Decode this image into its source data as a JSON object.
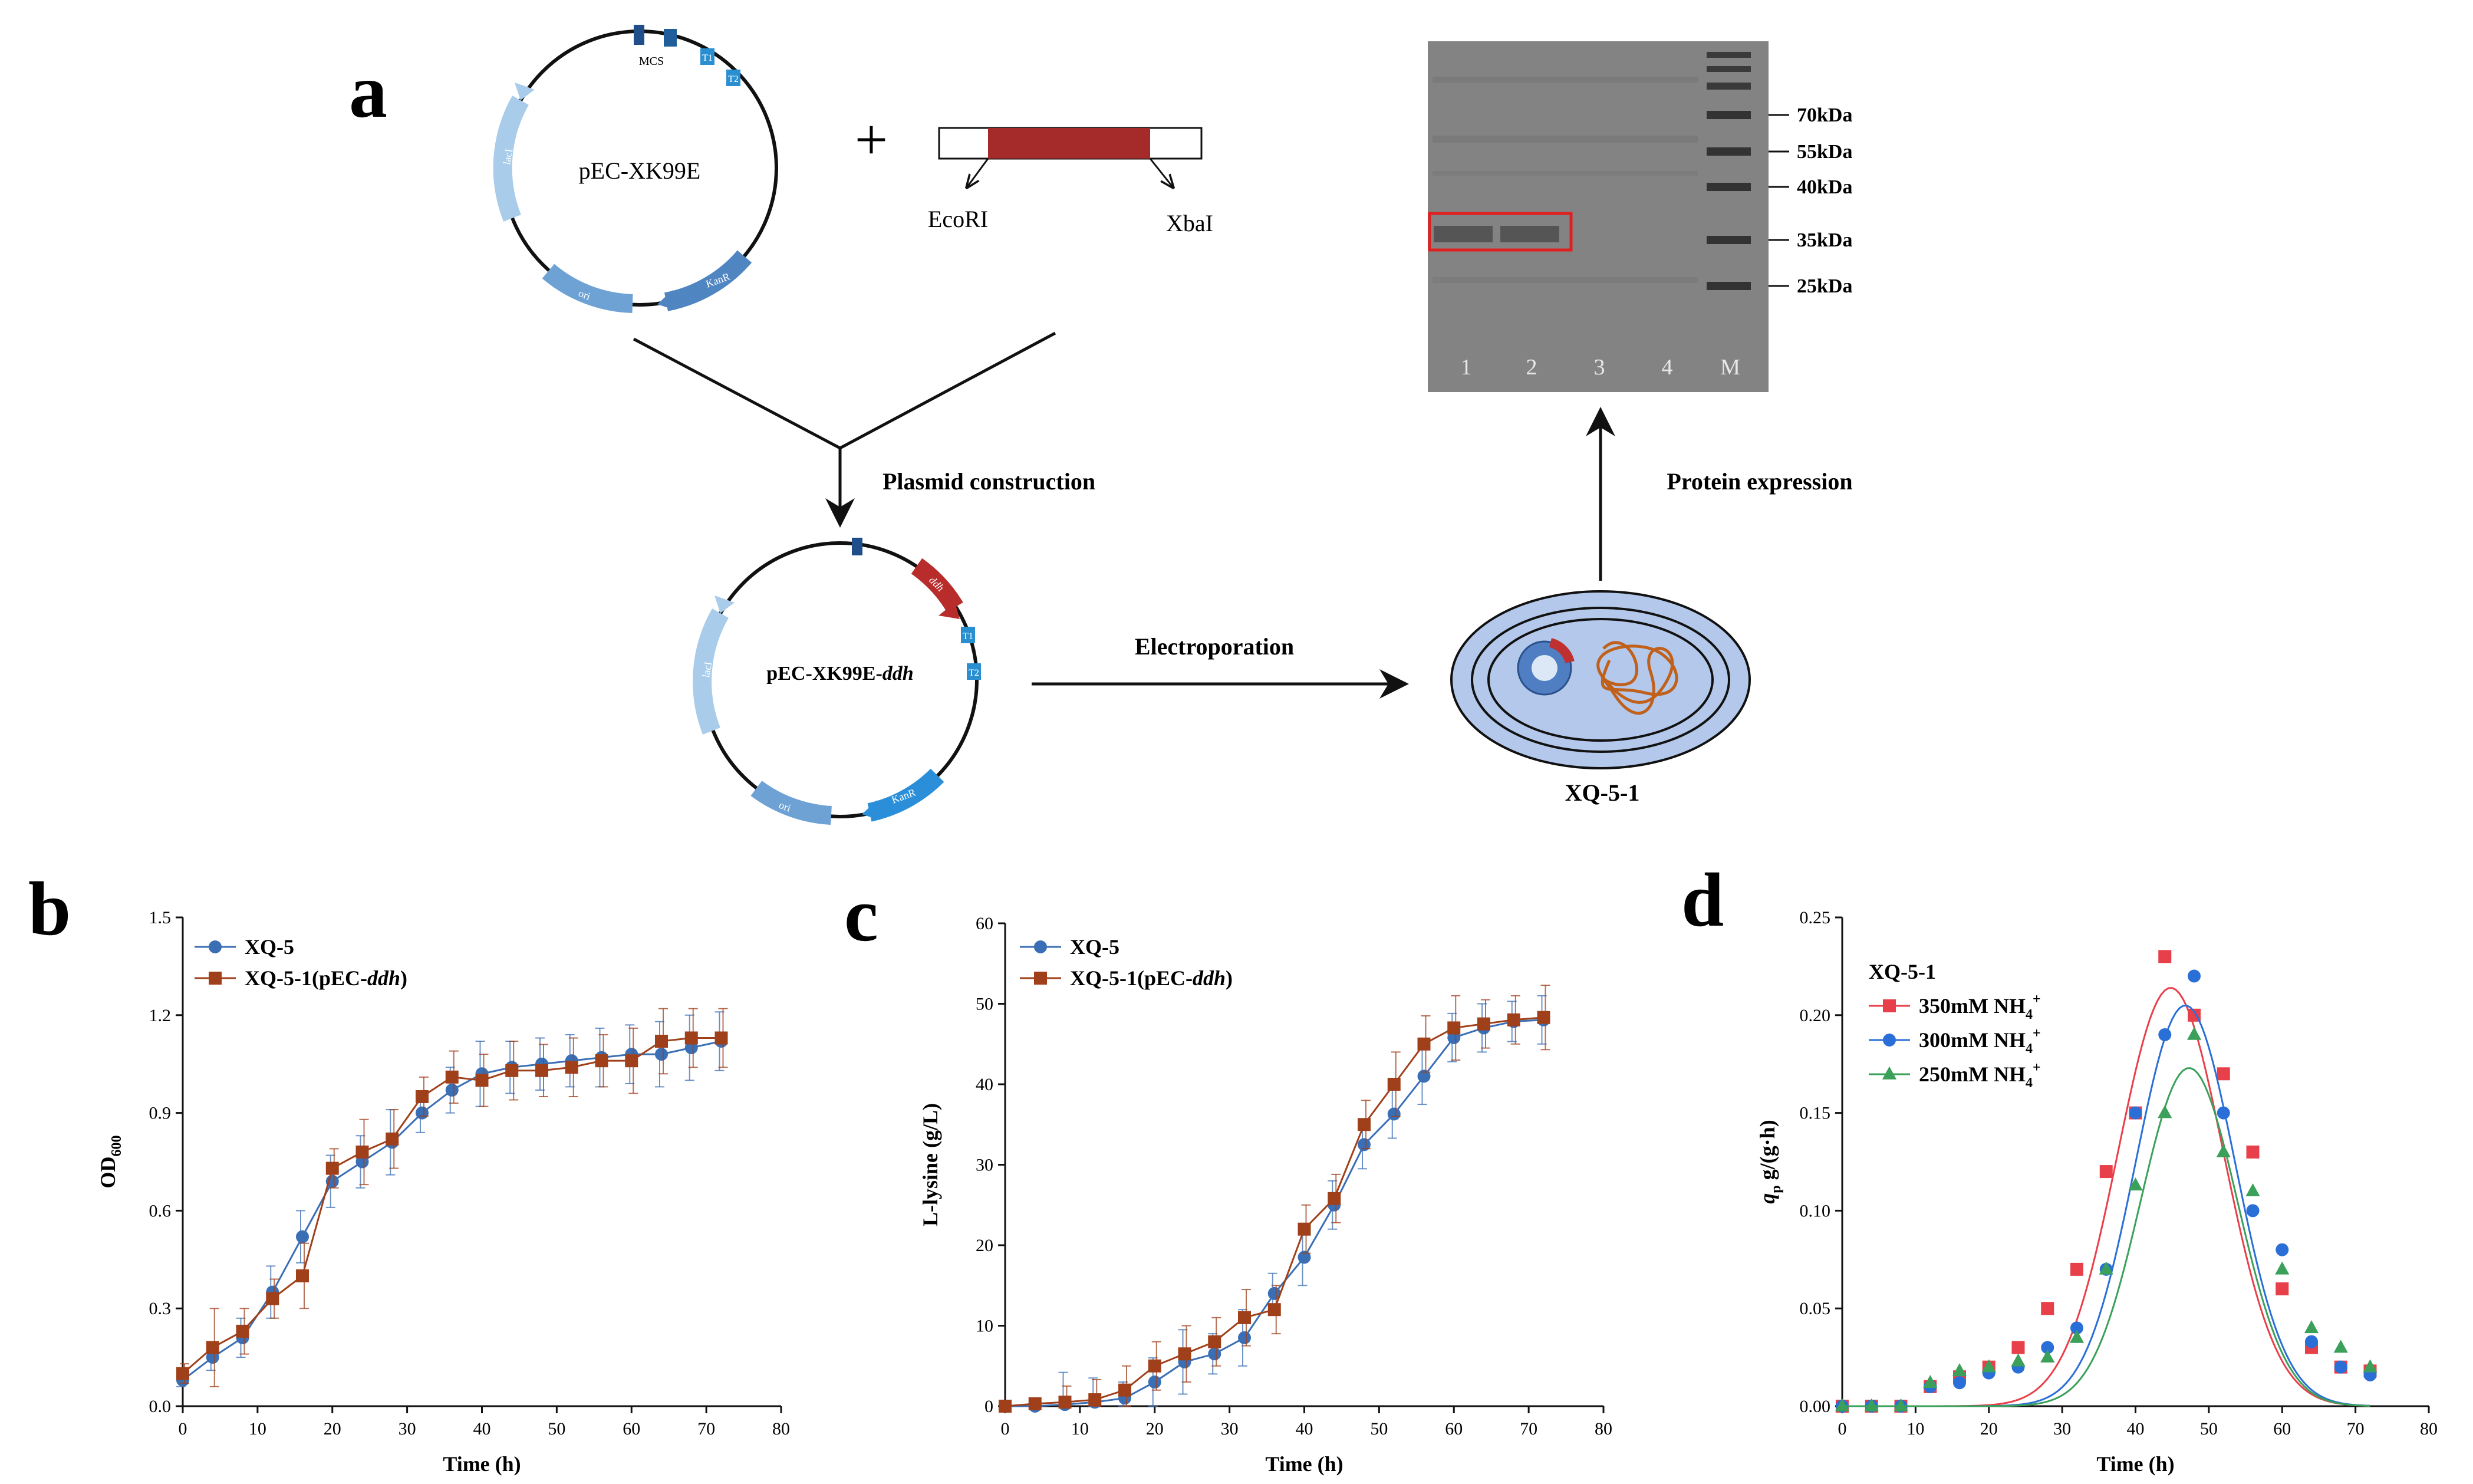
{
  "panels": {
    "a": {
      "label": "a",
      "plasmid1": "pEC-XK99E",
      "plasmid1_features": [
        "MCS",
        "T1",
        "T2",
        "KanR",
        "ori",
        "lacI"
      ],
      "plus": "+",
      "site_left": "EcoRI",
      "site_right": "XbaI",
      "step1": "Plasmid construction",
      "plasmid2_prefix": "pEC-XK99E-",
      "plasmid2_gene": "ddh",
      "plasmid2_features": [
        "ddh",
        "T1",
        "T2",
        "KanR",
        "ori",
        "lacI"
      ],
      "step2": "Electroporation",
      "strain": "XQ-5-1",
      "step3": "Protein expression",
      "gel_markers": [
        "70kDa",
        "55kDa",
        "40kDa",
        "35kDa",
        "25kDa"
      ],
      "gel_lanes": [
        "1",
        "2",
        "3",
        "4",
        "M"
      ]
    },
    "b": {
      "label": "b"
    },
    "c": {
      "label": "c"
    },
    "d": {
      "label": "d"
    }
  },
  "colors": {
    "blue": "#3a6eb5",
    "brown": "#a0401a",
    "red": "#e8404a",
    "blue_d": "#2a6fd8",
    "green": "#3aa05a",
    "insert": "#a52a2a"
  },
  "chart_data": [
    {
      "panel": "b",
      "type": "line",
      "xlabel": "Time (h)",
      "ylabel": "OD600",
      "ylabel_main": "OD",
      "ylabel_sub": "600",
      "xlim": [
        0,
        80
      ],
      "ylim": [
        0,
        1.5
      ],
      "xticks": [
        0,
        10,
        20,
        30,
        40,
        50,
        60,
        70,
        80
      ],
      "yticks": [
        0.0,
        0.3,
        0.6,
        0.9,
        1.2,
        1.5
      ],
      "x": [
        0,
        4,
        8,
        12,
        16,
        20,
        24,
        28,
        32,
        36,
        40,
        44,
        48,
        52,
        56,
        60,
        64,
        68,
        72
      ],
      "series": [
        {
          "name": "XQ-5",
          "marker": "circle",
          "values": [
            0.08,
            0.15,
            0.21,
            0.35,
            0.52,
            0.69,
            0.75,
            0.81,
            0.9,
            0.97,
            1.02,
            1.04,
            1.05,
            1.06,
            1.07,
            1.08,
            1.08,
            1.1,
            1.12
          ],
          "err": [
            0.02,
            0.04,
            0.06,
            0.08,
            0.08,
            0.08,
            0.08,
            0.1,
            0.06,
            0.07,
            0.1,
            0.08,
            0.08,
            0.08,
            0.09,
            0.09,
            0.1,
            0.1,
            0.09
          ]
        },
        {
          "name": "XQ-5-1(pEC-ddh)",
          "name_prefix": "XQ-5-1(pEC-",
          "name_italic": "ddh",
          "name_suffix": ")",
          "marker": "square",
          "values": [
            0.1,
            0.18,
            0.23,
            0.33,
            0.4,
            0.73,
            0.78,
            0.82,
            0.95,
            1.01,
            1.0,
            1.03,
            1.03,
            1.04,
            1.06,
            1.06,
            1.12,
            1.13,
            1.13
          ],
          "err": [
            0.03,
            0.12,
            0.07,
            0.06,
            0.1,
            0.06,
            0.1,
            0.09,
            0.06,
            0.08,
            0.08,
            0.09,
            0.08,
            0.09,
            0.08,
            0.1,
            0.1,
            0.09,
            0.09
          ]
        }
      ]
    },
    {
      "panel": "c",
      "type": "line",
      "xlabel": "Time (h)",
      "ylabel": "L-lysine (g/L)",
      "xlim": [
        0,
        80
      ],
      "ylim": [
        0,
        60
      ],
      "xticks": [
        0,
        10,
        20,
        30,
        40,
        50,
        60,
        70,
        80
      ],
      "yticks": [
        0,
        10,
        20,
        30,
        40,
        50,
        60
      ],
      "x": [
        0,
        4,
        8,
        12,
        16,
        20,
        24,
        28,
        32,
        36,
        40,
        44,
        48,
        52,
        56,
        60,
        64,
        68,
        72
      ],
      "series": [
        {
          "name": "XQ-5",
          "marker": "circle",
          "values": [
            0,
            0,
            0.2,
            0.5,
            1.0,
            3.0,
            5.5,
            6.5,
            8.5,
            14.0,
            18.5,
            25.0,
            32.5,
            36.3,
            41.0,
            45.8,
            47.0,
            47.8,
            48.0
          ],
          "err": [
            0.2,
            0.3,
            4.0,
            3.0,
            2.0,
            3.0,
            4.0,
            2.5,
            3.5,
            2.5,
            3.5,
            3.0,
            3.0,
            3.0,
            3.5,
            3.0,
            3.0,
            2.5,
            3.0
          ]
        },
        {
          "name": "XQ-5-1(pEC-ddh)",
          "name_prefix": "XQ-5-1(pEC-",
          "name_italic": "ddh",
          "name_suffix": ")",
          "marker": "square",
          "values": [
            0,
            0.3,
            0.5,
            0.8,
            2.0,
            5.0,
            6.5,
            8.0,
            11.0,
            12.0,
            22.0,
            25.8,
            35.0,
            40.0,
            45.0,
            47.0,
            47.5,
            48.0,
            48.3
          ],
          "err": [
            0.2,
            0.3,
            2.0,
            2.5,
            3.0,
            3.0,
            3.5,
            3.0,
            3.5,
            3.0,
            3.0,
            3.0,
            3.0,
            4.0,
            3.5,
            4.0,
            3.0,
            3.0,
            4.0
          ]
        }
      ]
    },
    {
      "panel": "d",
      "type": "scatter",
      "xlabel": "Time (h)",
      "ylabel": "qp g/(g·h)",
      "ylabel_sym": "q",
      "ylabel_sub": "p",
      "ylabel_rest": " g/(g·h)",
      "legend_title": "XQ-5-1",
      "xlim": [
        0,
        80
      ],
      "ylim": [
        0,
        0.25
      ],
      "xticks": [
        0,
        10,
        20,
        30,
        40,
        50,
        60,
        70,
        80
      ],
      "yticks": [
        0.0,
        0.05,
        0.1,
        0.15,
        0.2,
        0.25
      ],
      "x": [
        0,
        4,
        8,
        12,
        16,
        20,
        24,
        28,
        32,
        36,
        40,
        44,
        48,
        52,
        56,
        60,
        64,
        68,
        72
      ],
      "series": [
        {
          "name": "350mM NH4+",
          "name_main": "350mM NH",
          "name_sub": "4",
          "name_sup": "+",
          "marker": "square",
          "values": [
            0,
            0,
            0,
            0.01,
            0.015,
            0.02,
            0.03,
            0.05,
            0.07,
            0.12,
            0.15,
            0.23,
            0.2,
            0.17,
            0.13,
            0.06,
            0.03,
            0.02,
            0.018
          ],
          "fit": {
            "peak": 0.214,
            "center": 44.8,
            "width": 7.2
          }
        },
        {
          "name": "300mM NH4+",
          "name_main": "300mM NH",
          "name_sub": "4",
          "name_sup": "+",
          "marker": "circle",
          "values": [
            0,
            0,
            0,
            0.01,
            0.012,
            0.017,
            0.02,
            0.03,
            0.04,
            0.07,
            0.15,
            0.19,
            0.22,
            0.15,
            0.1,
            0.08,
            0.033,
            0.02,
            0.016
          ],
          "fit": {
            "peak": 0.205,
            "center": 46.8,
            "width": 6.8
          }
        },
        {
          "name": "250mM NH4+",
          "name_main": "250mM NH",
          "name_sub": "4",
          "name_sup": "+",
          "marker": "triangle",
          "values": [
            0,
            0,
            0,
            0.012,
            0.018,
            0.02,
            0.023,
            0.025,
            0.035,
            0.07,
            0.113,
            0.15,
            0.19,
            0.13,
            0.11,
            0.07,
            0.04,
            0.03,
            0.02
          ],
          "fit": {
            "peak": 0.173,
            "center": 47.3,
            "width": 6.6
          }
        }
      ]
    }
  ]
}
